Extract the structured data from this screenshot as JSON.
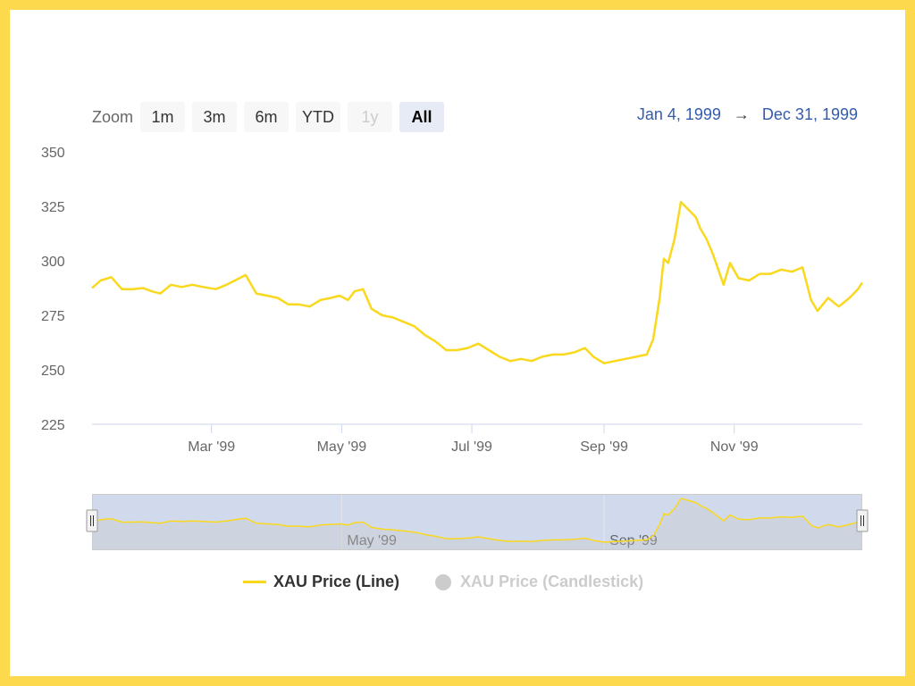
{
  "zoom": {
    "label": "Zoom",
    "buttons": [
      {
        "label": "1m",
        "state": "normal"
      },
      {
        "label": "3m",
        "state": "normal"
      },
      {
        "label": "6m",
        "state": "normal"
      },
      {
        "label": "YTD",
        "state": "normal"
      },
      {
        "label": "1y",
        "state": "disabled"
      },
      {
        "label": "All",
        "state": "active"
      }
    ]
  },
  "range": {
    "from": "Jan 4, 1999",
    "arrow": "→",
    "to": "Dec 31, 1999"
  },
  "colors": {
    "line": "#fad81e",
    "frame": "#fcd94d",
    "navigator_mask": "#ccd6eb",
    "axis": "#ccd6eb"
  },
  "legend": [
    {
      "label": "XAU Price (Line)",
      "visible": true
    },
    {
      "label": "XAU Price (Candlestick)",
      "visible": false
    }
  ],
  "chart_data": {
    "type": "line",
    "x_type": "datetime",
    "series": [
      {
        "name": "XAU Price (Line)",
        "x": [
          "1999-01-04",
          "1999-01-08",
          "1999-01-13",
          "1999-01-18",
          "1999-01-23",
          "1999-01-28",
          "1999-02-01",
          "1999-02-05",
          "1999-02-10",
          "1999-02-15",
          "1999-02-20",
          "1999-02-25",
          "1999-03-03",
          "1999-03-08",
          "1999-03-12",
          "1999-03-17",
          "1999-03-22",
          "1999-03-27",
          "1999-04-01",
          "1999-04-06",
          "1999-04-11",
          "1999-04-16",
          "1999-04-21",
          "1999-04-26",
          "1999-04-30",
          "1999-05-04",
          "1999-05-07",
          "1999-05-11",
          "1999-05-15",
          "1999-05-20",
          "1999-05-25",
          "1999-05-30",
          "1999-06-04",
          "1999-06-09",
          "1999-06-14",
          "1999-06-19",
          "1999-06-24",
          "1999-06-29",
          "1999-07-04",
          "1999-07-09",
          "1999-07-14",
          "1999-07-19",
          "1999-07-24",
          "1999-07-29",
          "1999-08-03",
          "1999-08-08",
          "1999-08-13",
          "1999-08-18",
          "1999-08-23",
          "1999-08-27",
          "1999-09-01",
          "1999-09-06",
          "1999-09-11",
          "1999-09-16",
          "1999-09-21",
          "1999-09-24",
          "1999-09-27",
          "1999-09-29",
          "1999-10-01",
          "1999-10-04",
          "1999-10-07",
          "1999-10-11",
          "1999-10-14",
          "1999-10-16",
          "1999-10-19",
          "1999-10-22",
          "1999-10-27",
          "1999-10-30",
          "1999-11-03",
          "1999-11-08",
          "1999-11-13",
          "1999-11-18",
          "1999-11-23",
          "1999-11-28",
          "1999-12-03",
          "1999-12-07",
          "1999-12-10",
          "1999-12-15",
          "1999-12-20",
          "1999-12-25",
          "1999-12-29",
          "1999-12-31"
        ],
        "y": [
          287.5,
          291,
          292.5,
          287,
          287,
          287.5,
          286,
          285,
          289,
          288,
          289,
          288,
          287,
          289,
          291,
          293.5,
          285,
          284,
          283,
          280,
          280,
          279,
          282,
          283,
          284,
          282,
          286,
          287,
          278,
          275,
          274,
          272,
          270,
          266,
          263,
          259,
          259,
          260,
          262,
          259,
          256,
          254,
          255,
          254,
          256,
          257,
          257,
          258,
          260,
          256,
          253,
          254,
          255,
          256,
          257,
          264,
          283,
          301,
          299,
          310,
          327,
          323,
          320,
          315,
          310,
          303,
          289,
          299,
          292,
          291,
          294,
          294,
          296,
          295,
          297,
          282,
          277,
          283,
          279,
          283,
          287,
          290
        ]
      }
    ],
    "xlim": [
      "1999-01-04",
      "1999-12-31"
    ],
    "ylim": [
      225,
      350
    ],
    "y_ticks": [
      350,
      325,
      300,
      275,
      250,
      225
    ],
    "x_ticks": [
      {
        "date": "1999-03-01",
        "label": "Mar '99"
      },
      {
        "date": "1999-05-01",
        "label": "May '99"
      },
      {
        "date": "1999-07-01",
        "label": "Jul '99"
      },
      {
        "date": "1999-09-01",
        "label": "Sep '99"
      },
      {
        "date": "1999-11-01",
        "label": "Nov '99"
      }
    ],
    "navigator_ticks": [
      {
        "date": "1999-05-01",
        "label": "May '99"
      },
      {
        "date": "1999-09-01",
        "label": "Sep '99"
      }
    ],
    "grid": false,
    "legend_position": "bottom"
  }
}
